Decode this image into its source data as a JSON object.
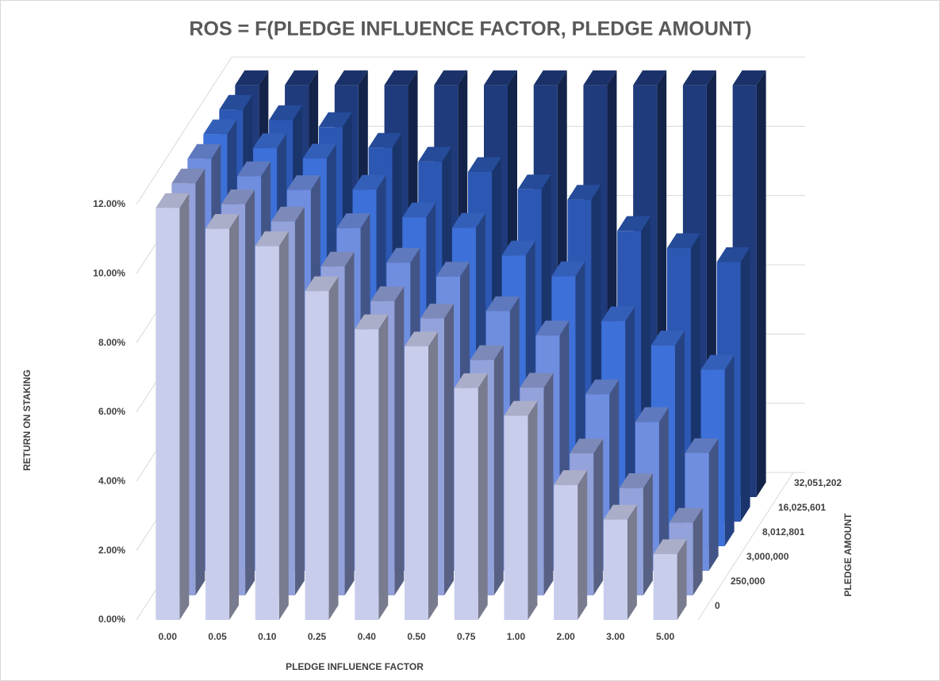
{
  "chart_data": {
    "type": "bar3d",
    "title": "ROS = F(PLEDGE INFLUENCE FACTOR, PLEDGE AMOUNT)",
    "x_label": "PLEDGE INFLUENCE FACTOR",
    "y_label": "RETURN ON STAKING",
    "z_label": "PLEDGE AMOUNT",
    "categories": [
      "0.00",
      "0.05",
      "0.10",
      "0.25",
      "0.40",
      "0.50",
      "0.75",
      "1.00",
      "2.00",
      "3.00",
      "5.00"
    ],
    "series": [
      {
        "name": "0",
        "color": "#c9cdec",
        "values": [
          11.9,
          11.3,
          10.8,
          9.5,
          8.4,
          7.9,
          6.7,
          5.9,
          3.9,
          2.9,
          1.9
        ]
      },
      {
        "name": "250,000",
        "color": "#93a2da",
        "values": [
          11.9,
          11.3,
          10.8,
          9.5,
          8.5,
          8.0,
          6.8,
          6.0,
          4.1,
          3.1,
          2.1
        ]
      },
      {
        "name": "3,000,000",
        "color": "#6f8ee0",
        "values": [
          11.9,
          11.4,
          11.0,
          9.9,
          8.9,
          8.5,
          7.5,
          6.8,
          5.1,
          4.3,
          3.4
        ]
      },
      {
        "name": "8,012,801",
        "color": "#3d70d8",
        "values": [
          11.9,
          11.5,
          11.2,
          10.3,
          9.5,
          9.2,
          8.4,
          7.8,
          6.5,
          5.8,
          5.1
        ]
      },
      {
        "name": "16,025,601",
        "color": "#2c58b4",
        "values": [
          11.9,
          11.6,
          11.4,
          10.8,
          10.4,
          10.1,
          9.6,
          9.3,
          8.4,
          7.9,
          7.5
        ]
      },
      {
        "name": "32,051,202",
        "color": "#1f3b7c",
        "values": [
          11.9,
          11.9,
          11.9,
          11.9,
          11.9,
          11.9,
          11.9,
          11.9,
          11.9,
          11.9,
          11.9
        ]
      }
    ],
    "ylim": [
      0,
      12
    ],
    "yticks": [
      {
        "value": 0,
        "label": "0.00%"
      },
      {
        "value": 2,
        "label": "2.00%"
      },
      {
        "value": 4,
        "label": "4.00%"
      },
      {
        "value": 6,
        "label": "6.00%"
      },
      {
        "value": 8,
        "label": "8.00%"
      },
      {
        "value": 10,
        "label": "10.00%"
      },
      {
        "value": 12,
        "label": "12.00%"
      }
    ],
    "grid": true
  }
}
